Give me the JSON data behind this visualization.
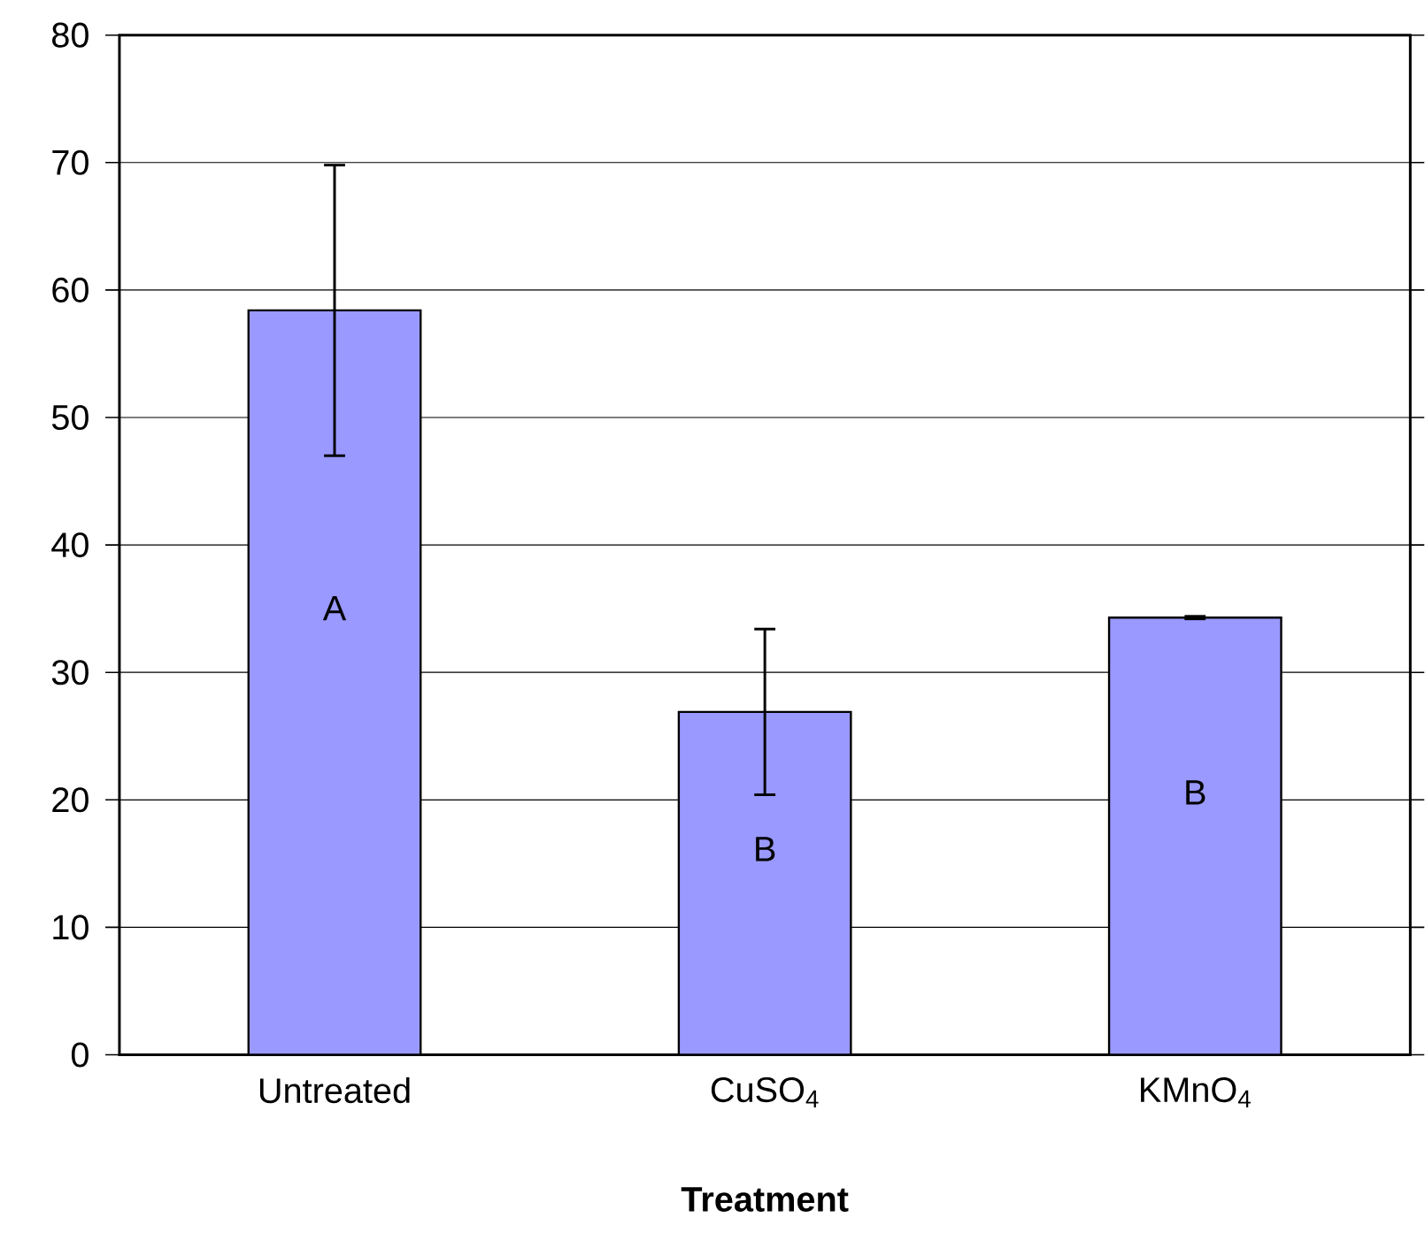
{
  "chart_data": {
    "type": "bar",
    "xlabel": "Treatment",
    "categories": [
      "Untreated",
      "CuSO$_{4}$",
      "KMnO$_{4}$"
    ],
    "values": [
      58.4,
      26.9,
      34.3
    ],
    "errors": [
      11.4,
      6.5,
      0.1
    ],
    "color": "#9999ff",
    "ylim": [
      0,
      80
    ],
    "yticks": [
      0,
      10,
      20,
      30,
      40,
      50,
      60,
      70,
      80
    ],
    "grid": "y",
    "annotations": [
      "A",
      "B",
      "B"
    ]
  }
}
